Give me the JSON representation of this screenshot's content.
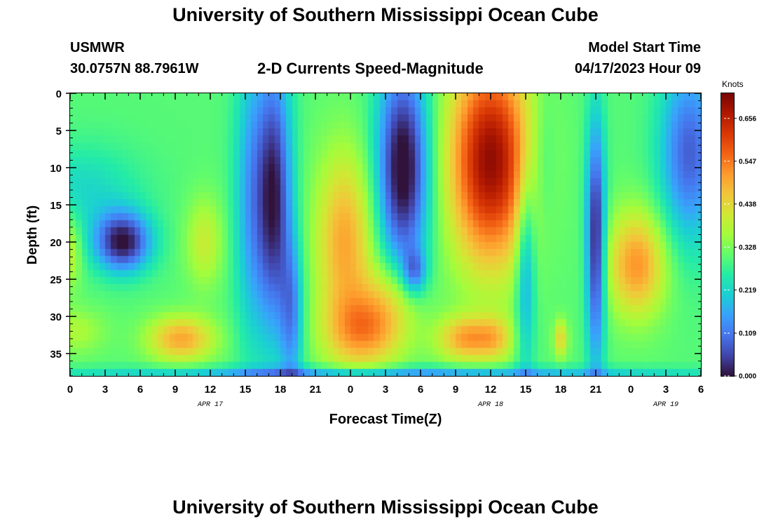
{
  "header": {
    "title": "University of Southern Mississippi Ocean Cube",
    "station": "USMWR",
    "coords": "30.0757N  88.7961W",
    "subtitle": "2-D Currents Speed-Magnitude",
    "start_label": "Model Start Time",
    "start_value": "04/17/2023 Hour 09"
  },
  "footer": {
    "title": "University of Southern Mississippi Ocean Cube"
  },
  "chart_data": {
    "type": "heatmap",
    "xlabel": "Forecast Time(Z)",
    "ylabel": "Depth (ft)",
    "x_tick_labels": [
      "0",
      "3",
      "6",
      "9",
      "12",
      "15",
      "18",
      "21",
      "0",
      "3",
      "6",
      "9",
      "12",
      "15",
      "18",
      "21",
      "0",
      "3",
      "6"
    ],
    "date_labels": [
      {
        "label": "APR 17",
        "hour": 12
      },
      {
        "label": "APR 18",
        "hour": 36
      },
      {
        "label": "APR 19",
        "hour": 51
      }
    ],
    "xlim": [
      0,
      54
    ],
    "ylim": [
      0,
      38
    ],
    "y_ticks": [
      0,
      5,
      10,
      15,
      20,
      25,
      30,
      35
    ],
    "colorbar": {
      "label": "Knots",
      "range": [
        0,
        0.72
      ],
      "tick_labels": [
        "0.656",
        "0.547",
        "0.438",
        "0.328",
        "0.219",
        "0.109",
        "0.000"
      ],
      "tick_values": [
        0.656,
        0.547,
        0.438,
        0.328,
        0.219,
        0.109,
        0.0
      ],
      "colors": [
        "#30123b",
        "#4145ab",
        "#4675ed",
        "#39a2fc",
        "#1bcfd4",
        "#24eca6",
        "#61fc6c",
        "#a4fc3b",
        "#d1e834",
        "#f3c63a",
        "#fe9b2d",
        "#f36315",
        "#d93806",
        "#b11901",
        "#7a0403"
      ]
    },
    "base_value": 0.3,
    "features": [
      {
        "hour": 4.5,
        "depth": 20,
        "hour_width": 2.4,
        "depth_width": 4,
        "value": -0.3
      },
      {
        "hour": 1,
        "depth": 13,
        "hour_width": 5,
        "depth_width": 6,
        "value": -0.08
      },
      {
        "hour": 11.5,
        "depth": 20,
        "hour_width": 1.6,
        "depth_width": 6,
        "value": 0.1
      },
      {
        "hour": 9.5,
        "depth": 33,
        "hour_width": 2.8,
        "depth_width": 3,
        "value": 0.2
      },
      {
        "hour": 0.5,
        "depth": 32,
        "hour_width": 2.5,
        "depth_width": 3,
        "value": 0.07
      },
      {
        "hour": 0,
        "depth": 21,
        "hour_width": 1,
        "depth_width": 5,
        "value": 0.1
      },
      {
        "hour": 17.5,
        "depth": 14,
        "hour_width": 1.5,
        "depth_width": 18,
        "value": -0.28
      },
      {
        "hour": 15.5,
        "depth": 14,
        "hour_width": 1.5,
        "depth_width": 20,
        "value": -0.14
      },
      {
        "hour": 19,
        "depth": 30,
        "hour_width": 1,
        "depth_width": 10,
        "value": -0.16
      },
      {
        "hour": 23.5,
        "depth": 20,
        "hour_width": 2.5,
        "depth_width": 12,
        "value": 0.2
      },
      {
        "hour": 25.5,
        "depth": 32,
        "hour_width": 3.5,
        "depth_width": 5,
        "value": 0.2
      },
      {
        "hour": 27.5,
        "depth": 27,
        "hour_width": 2.5,
        "depth_width": 5,
        "value": 0.1
      },
      {
        "hour": 28.5,
        "depth": 10,
        "hour_width": 2.2,
        "depth_width": 14,
        "value": -0.33
      },
      {
        "hour": 29.5,
        "depth": 24,
        "hour_width": 1,
        "depth_width": 3,
        "value": -0.16
      },
      {
        "hour": 36,
        "depth": 9,
        "hour_width": 3.5,
        "depth_width": 14,
        "value": 0.4
      },
      {
        "hour": 34,
        "depth": 33,
        "hour_width": 2.5,
        "depth_width": 3,
        "value": 0.2
      },
      {
        "hour": 36.5,
        "depth": 33,
        "hour_width": 1.5,
        "depth_width": 3,
        "value": 0.1
      },
      {
        "hour": 39,
        "depth": 23,
        "hour_width": 0.8,
        "depth_width": 14,
        "value": -0.16
      },
      {
        "hour": 40.5,
        "depth": 9,
        "hour_width": 1,
        "depth_width": 10,
        "value": -0.06
      },
      {
        "hour": 42,
        "depth": 33,
        "hour_width": 0.6,
        "depth_width": 2.5,
        "value": 0.15
      },
      {
        "hour": 45,
        "depth": 20,
        "hour_width": 0.8,
        "depth_width": 16,
        "value": -0.3
      },
      {
        "hour": 48.5,
        "depth": 23,
        "hour_width": 2.5,
        "depth_width": 7,
        "value": 0.22
      },
      {
        "hour": 53,
        "depth": 8,
        "hour_width": 2.5,
        "depth_width": 12,
        "value": -0.22
      },
      {
        "hour": 27,
        "depth": 37.5,
        "hour_width": 27,
        "depth_width": 0.8,
        "value": -0.15
      }
    ]
  }
}
